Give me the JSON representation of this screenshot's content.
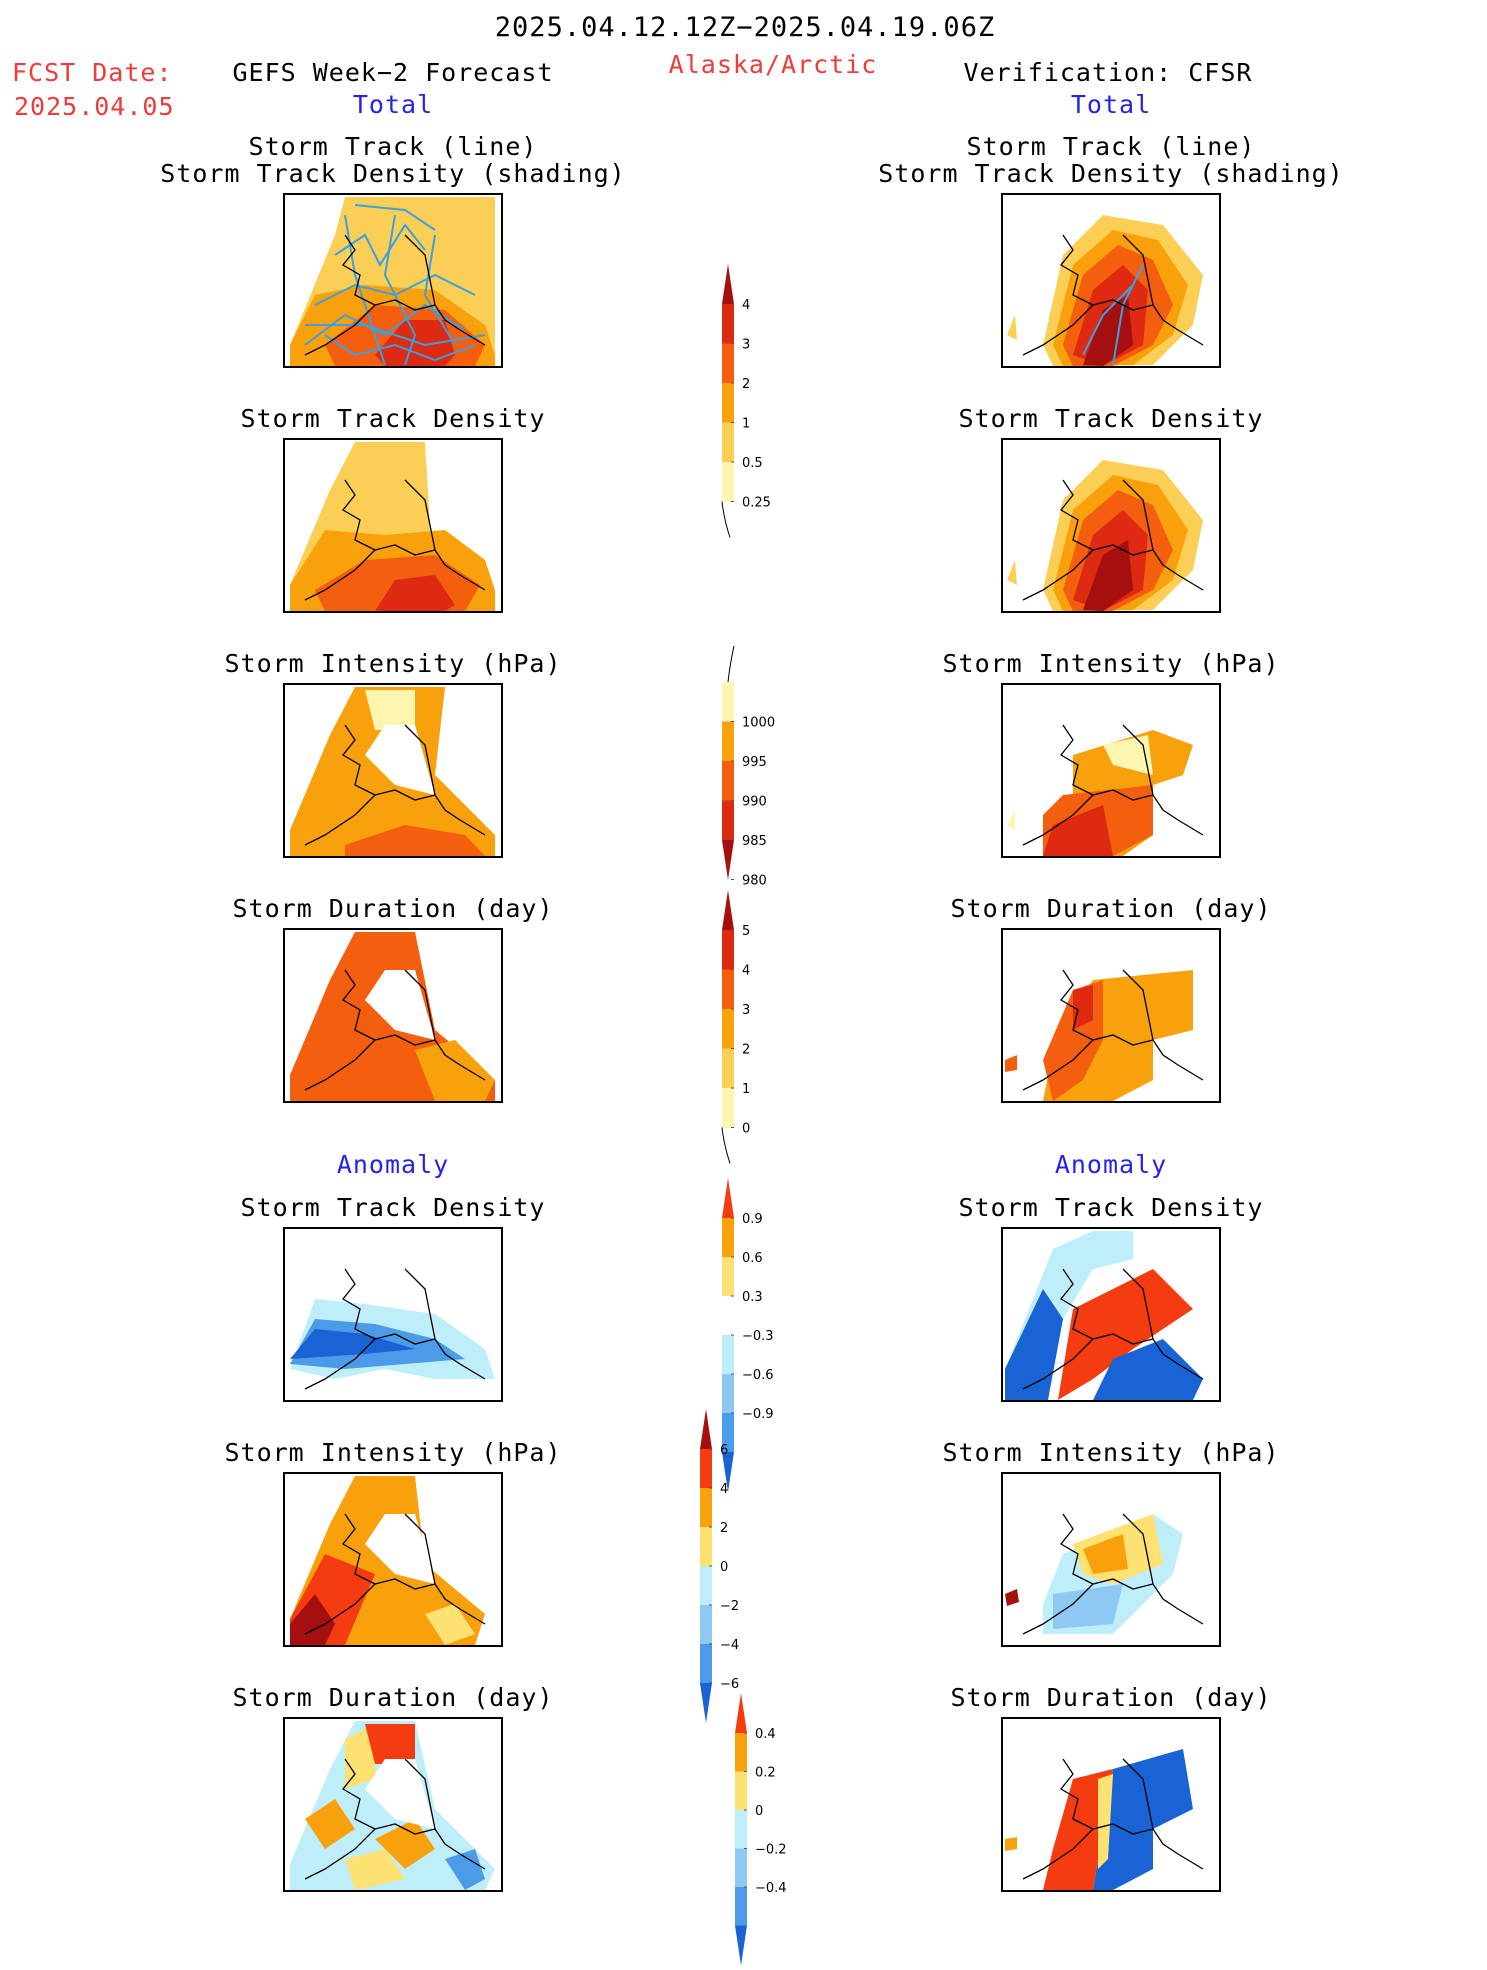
{
  "header": {
    "date_range": "2025.04.12.12Z−2025.04.19.06Z",
    "fcst_label": "FCST Date:",
    "fcst_date": "2025.04.05",
    "left_title": "GEFS Week−2 Forecast",
    "region": "Alaska/Arctic",
    "right_title": "Verification: CFSR"
  },
  "sections": {
    "total": "Total",
    "anomaly": "Anomaly"
  },
  "panel_titles": {
    "track_line": "Storm Track (line)",
    "track_shading": "Storm Track Density (shading)",
    "density": "Storm Track Density",
    "intensity": "Storm Intensity (hPa)",
    "duration": "Storm Duration (day)"
  },
  "colorbars": {
    "density_total": {
      "labels": [
        "4",
        "3",
        "2",
        "1",
        "0.5",
        "0.25"
      ],
      "colors": [
        "#a50f0f",
        "#dd2a10",
        "#f35e0f",
        "#f9a10c",
        "#fbcf55",
        "#fef6b0"
      ]
    },
    "intensity_total": {
      "labels": [
        "1000",
        "995",
        "990",
        "985",
        "980"
      ],
      "colors": [
        "#fef6b0",
        "#f9a10c",
        "#f35e0f",
        "#dd2a10",
        "#a50f0f"
      ]
    },
    "duration_total": {
      "labels": [
        "5",
        "4",
        "3",
        "2",
        "1",
        "0"
      ],
      "colors": [
        "#a50f0f",
        "#dd2a10",
        "#f35e0f",
        "#f9a10c",
        "#fbcf55",
        "#fef6b0"
      ]
    },
    "density_anom": {
      "labels": [
        "0.9",
        "0.6",
        "0.3",
        "−0.3",
        "−0.6",
        "−0.9"
      ],
      "colors": [
        "#f53c10",
        "#f9a10c",
        "#fde172",
        "#ffffff",
        "#bfeefb",
        "#8ec9f3",
        "#4c9be8",
        "#1a63d4"
      ]
    },
    "intensity_anom": {
      "labels": [
        "6",
        "4",
        "2",
        "0",
        "−2",
        "−4",
        "−6"
      ],
      "colors": [
        "#a50f0f",
        "#f53c10",
        "#f9a10c",
        "#fde172",
        "#bfeefb",
        "#8ec9f3",
        "#4c9be8",
        "#1a63d4"
      ]
    },
    "duration_anom": {
      "labels": [
        "0.4",
        "0.2",
        "0",
        "−0.2",
        "−0.4"
      ],
      "colors": [
        "#f53c10",
        "#f9a10c",
        "#fde172",
        "#bfeefb",
        "#8ec9f3",
        "#4c9be8",
        "#1a63d4"
      ]
    }
  },
  "colors": {
    "track_line": "#3aa0e0",
    "title_red": "#ee3b3b",
    "title_blue": "#2323ee"
  }
}
